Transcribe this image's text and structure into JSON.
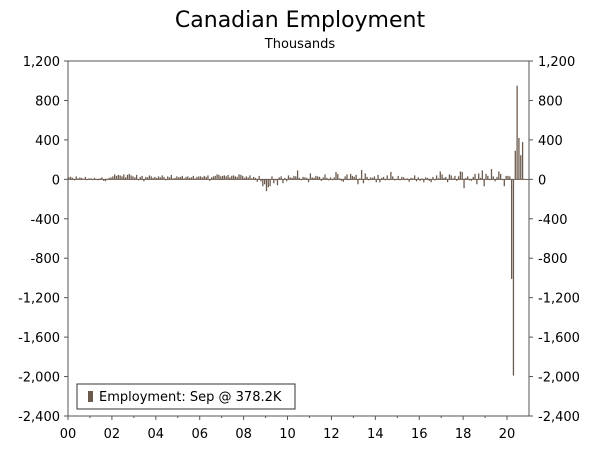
{
  "chart_data": {
    "type": "bar",
    "title": "Canadian Employment",
    "subtitle": "Thousands",
    "series_color": "#6b5a4e",
    "ylim": [
      -2400,
      1200
    ],
    "y_ticks": [
      "1,200",
      "800",
      "400",
      "0",
      "-400",
      "-800",
      "-1,200",
      "-1,600",
      "-2,000",
      "-2,400"
    ],
    "y_tick_values": [
      1200,
      800,
      400,
      0,
      -400,
      -800,
      -1200,
      -1600,
      -2000,
      -2400
    ],
    "x_ticks": [
      "00",
      "02",
      "04",
      "06",
      "08",
      "10",
      "12",
      "14",
      "16",
      "18",
      "20"
    ],
    "x_tick_years": [
      2000,
      2002,
      2004,
      2006,
      2008,
      2010,
      2012,
      2014,
      2016,
      2018,
      2020
    ],
    "x_range": [
      2000.0,
      2021.0
    ],
    "legend_label": "Employment: Sep @ 378.2K",
    "series": [
      {
        "name": "Employment",
        "x": [
          "2000-01",
          "2000-02",
          "2000-03",
          "2000-04",
          "2000-05",
          "2000-06",
          "2000-07",
          "2000-08",
          "2000-09",
          "2000-10",
          "2000-11",
          "2000-12",
          "2001-01",
          "2001-02",
          "2001-03",
          "2001-04",
          "2001-05",
          "2001-06",
          "2001-07",
          "2001-08",
          "2001-09",
          "2001-10",
          "2001-11",
          "2001-12",
          "2002-01",
          "2002-02",
          "2002-03",
          "2002-04",
          "2002-05",
          "2002-06",
          "2002-07",
          "2002-08",
          "2002-09",
          "2002-10",
          "2002-11",
          "2002-12",
          "2003-01",
          "2003-02",
          "2003-03",
          "2003-04",
          "2003-05",
          "2003-06",
          "2003-07",
          "2003-08",
          "2003-09",
          "2003-10",
          "2003-11",
          "2003-12",
          "2004-01",
          "2004-02",
          "2004-03",
          "2004-04",
          "2004-05",
          "2004-06",
          "2004-07",
          "2004-08",
          "2004-09",
          "2004-10",
          "2004-11",
          "2004-12",
          "2005-01",
          "2005-02",
          "2005-03",
          "2005-04",
          "2005-05",
          "2005-06",
          "2005-07",
          "2005-08",
          "2005-09",
          "2005-10",
          "2005-11",
          "2005-12",
          "2006-01",
          "2006-02",
          "2006-03",
          "2006-04",
          "2006-05",
          "2006-06",
          "2006-07",
          "2006-08",
          "2006-09",
          "2006-10",
          "2006-11",
          "2006-12",
          "2007-01",
          "2007-02",
          "2007-03",
          "2007-04",
          "2007-05",
          "2007-06",
          "2007-07",
          "2007-08",
          "2007-09",
          "2007-10",
          "2007-11",
          "2007-12",
          "2008-01",
          "2008-02",
          "2008-03",
          "2008-04",
          "2008-05",
          "2008-06",
          "2008-07",
          "2008-08",
          "2008-09",
          "2008-10",
          "2008-11",
          "2008-12",
          "2009-01",
          "2009-02",
          "2009-03",
          "2009-04",
          "2009-05",
          "2009-06",
          "2009-07",
          "2009-08",
          "2009-09",
          "2009-10",
          "2009-11",
          "2009-12",
          "2010-01",
          "2010-02",
          "2010-03",
          "2010-04",
          "2010-05",
          "2010-06",
          "2010-07",
          "2010-08",
          "2010-09",
          "2010-10",
          "2010-11",
          "2010-12",
          "2011-01",
          "2011-02",
          "2011-03",
          "2011-04",
          "2011-05",
          "2011-06",
          "2011-07",
          "2011-08",
          "2011-09",
          "2011-10",
          "2011-11",
          "2011-12",
          "2012-01",
          "2012-02",
          "2012-03",
          "2012-04",
          "2012-05",
          "2012-06",
          "2012-07",
          "2012-08",
          "2012-09",
          "2012-10",
          "2012-11",
          "2012-12",
          "2013-01",
          "2013-02",
          "2013-03",
          "2013-04",
          "2013-05",
          "2013-06",
          "2013-07",
          "2013-08",
          "2013-09",
          "2013-10",
          "2013-11",
          "2013-12",
          "2014-01",
          "2014-02",
          "2014-03",
          "2014-04",
          "2014-05",
          "2014-06",
          "2014-07",
          "2014-08",
          "2014-09",
          "2014-10",
          "2014-11",
          "2014-12",
          "2015-01",
          "2015-02",
          "2015-03",
          "2015-04",
          "2015-05",
          "2015-06",
          "2015-07",
          "2015-08",
          "2015-09",
          "2015-10",
          "2015-11",
          "2015-12",
          "2016-01",
          "2016-02",
          "2016-03",
          "2016-04",
          "2016-05",
          "2016-06",
          "2016-07",
          "2016-08",
          "2016-09",
          "2016-10",
          "2016-11",
          "2016-12",
          "2017-01",
          "2017-02",
          "2017-03",
          "2017-04",
          "2017-05",
          "2017-06",
          "2017-07",
          "2017-08",
          "2017-09",
          "2017-10",
          "2017-11",
          "2017-12",
          "2018-01",
          "2018-02",
          "2018-03",
          "2018-04",
          "2018-05",
          "2018-06",
          "2018-07",
          "2018-08",
          "2018-09",
          "2018-10",
          "2018-11",
          "2018-12",
          "2019-01",
          "2019-02",
          "2019-03",
          "2019-04",
          "2019-05",
          "2019-06",
          "2019-07",
          "2019-08",
          "2019-09",
          "2019-10",
          "2019-11",
          "2019-12",
          "2020-01",
          "2020-02",
          "2020-03",
          "2020-04",
          "2020-05",
          "2020-06",
          "2020-07",
          "2020-08",
          "2020-09"
        ],
        "values": [
          20,
          25,
          15,
          -10,
          30,
          10,
          20,
          15,
          5,
          25,
          -5,
          10,
          10,
          -5,
          15,
          5,
          -10,
          10,
          20,
          -15,
          -20,
          5,
          15,
          20,
          30,
          50,
          35,
          45,
          40,
          30,
          50,
          20,
          45,
          55,
          40,
          30,
          20,
          45,
          -10,
          25,
          35,
          -20,
          25,
          20,
          40,
          30,
          15,
          25,
          15,
          30,
          20,
          40,
          25,
          -10,
          30,
          20,
          45,
          10,
          15,
          30,
          20,
          25,
          35,
          10,
          25,
          30,
          15,
          20,
          35,
          10,
          25,
          30,
          30,
          20,
          35,
          25,
          40,
          -15,
          20,
          30,
          35,
          50,
          45,
          30,
          35,
          40,
          30,
          45,
          20,
          35,
          40,
          30,
          25,
          50,
          45,
          35,
          15,
          30,
          20,
          40,
          10,
          25,
          15,
          -25,
          35,
          -20,
          -70,
          -50,
          -120,
          -80,
          -70,
          30,
          -40,
          -10,
          -60,
          20,
          30,
          -40,
          15,
          -20,
          40,
          20,
          15,
          35,
          30,
          90,
          15,
          -5,
          25,
          20,
          15,
          -30,
          60,
          20,
          15,
          35,
          30,
          25,
          -15,
          20,
          50,
          15,
          -10,
          20,
          -5,
          20,
          75,
          55,
          10,
          -15,
          -25,
          30,
          50,
          -5,
          55,
          35,
          25,
          45,
          -50,
          10,
          95,
          -40,
          60,
          25,
          -10,
          20,
          15,
          30,
          -30,
          45,
          -30,
          15,
          25,
          -10,
          40,
          -5,
          75,
          30,
          -10,
          -5,
          35,
          -10,
          25,
          20,
          -5,
          10,
          -25,
          15,
          10,
          40,
          -20,
          20,
          -15,
          10,
          -30,
          20,
          15,
          -15,
          -30,
          25,
          -10,
          40,
          10,
          80,
          50,
          15,
          25,
          -30,
          50,
          40,
          10,
          35,
          -15,
          30,
          80,
          75,
          -90,
          15,
          30,
          -10,
          -15,
          25,
          55,
          -50,
          60,
          15,
          90,
          -70,
          55,
          35,
          -5,
          105,
          30,
          -20,
          25,
          80,
          55,
          -5,
          -70,
          35,
          35,
          30,
          -1010,
          -1990,
          290,
          950,
          420,
          245,
          378
        ]
      }
    ]
  }
}
